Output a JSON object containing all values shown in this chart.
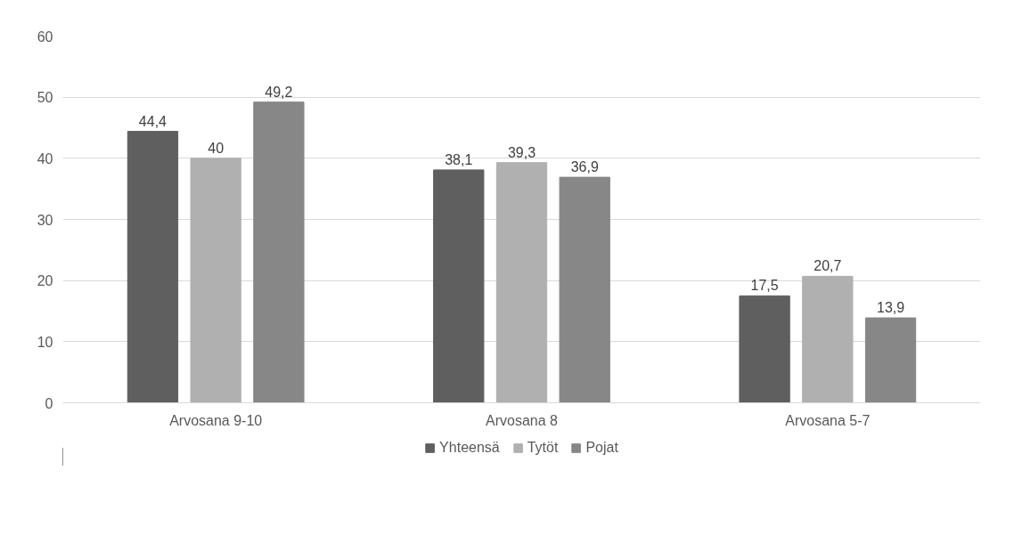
{
  "chart_data": {
    "type": "bar",
    "categories": [
      "Arvosana 9-10",
      "Arvosana 8",
      "Arvosana 5-7"
    ],
    "series": [
      {
        "name": "Yhteensä",
        "color": "#5f5f5f",
        "values": [
          44.4,
          38.1,
          17.5
        ],
        "value_labels": [
          "44,4",
          "38,1",
          "17,5"
        ]
      },
      {
        "name": "Tytöt",
        "color": "#b0b0b0",
        "values": [
          40,
          39.3,
          20.7
        ],
        "value_labels": [
          "40",
          "39,3",
          "20,7"
        ]
      },
      {
        "name": "Pojat",
        "color": "#878787",
        "values": [
          49.2,
          36.9,
          13.9
        ],
        "value_labels": [
          "49,2",
          "36,9",
          "13,9"
        ]
      }
    ],
    "ylim": [
      0,
      60
    ],
    "yticks": [
      0,
      10,
      20,
      30,
      40,
      50,
      60
    ],
    "grid": "y",
    "legend": "bottom"
  }
}
